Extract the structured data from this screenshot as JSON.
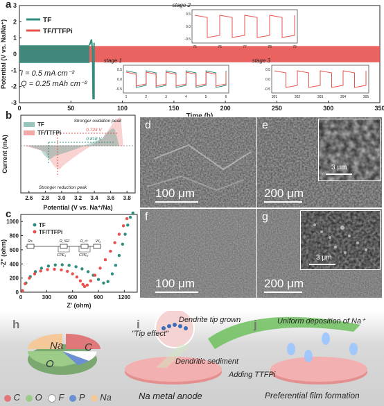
{
  "colors": {
    "tf": "#2f8c7e",
    "ttfpi": "#e8524f"
  },
  "panels": {
    "a": {
      "label": "a"
    },
    "b": {
      "label": "b"
    },
    "c": {
      "label": "c"
    },
    "d": {
      "label": "d",
      "scale": "100 μm"
    },
    "e": {
      "label": "e",
      "scale": "200 μm",
      "inset_scale": "3 μm"
    },
    "f": {
      "label": "f",
      "scale": "100 μm"
    },
    "g": {
      "label": "g",
      "scale": "200 μm",
      "inset_scale": "3 μm"
    },
    "h": {
      "label": "h"
    },
    "i": {
      "label": "i"
    },
    "j": {
      "label": "j"
    }
  },
  "chart_data": [
    {
      "id": "a",
      "type": "line",
      "xlabel": "Time (h)",
      "ylabel": "Potential (V vs. Na/Na⁺)",
      "xlim": [
        0,
        350
      ],
      "ylim": [
        -3,
        3
      ],
      "xticks": [
        0,
        50,
        100,
        150,
        200,
        250,
        300,
        350
      ],
      "yticks": [
        -3,
        -2,
        -1,
        0,
        1,
        2,
        3
      ],
      "legend": [
        "TF",
        "TF/TTFPi"
      ],
      "annotations": [
        "I = 0.5 mA cm⁻²",
        "Q = 0.25 mAh cm⁻²"
      ],
      "series": [
        {
          "name": "TF",
          "x": [
            0,
            68,
            70,
            71,
            72,
            73
          ],
          "y_band": [
            0.45,
            0.55,
            0.9,
            -2.7,
            -2.7,
            0.8
          ]
        },
        {
          "name": "TF/TTFPi",
          "x": [
            0,
            350
          ],
          "y_band": [
            0.5,
            0.5
          ]
        }
      ],
      "insets": [
        {
          "title": "stage 1",
          "xticks": [
            "1",
            "2",
            "3",
            "4",
            "5",
            "6"
          ],
          "yticks": [
            "0.5",
            "0.0",
            "-0.5"
          ]
        },
        {
          "title": "stage 2",
          "xticks": [
            "75",
            "76",
            "77",
            "78",
            "79"
          ],
          "yticks": [
            "0.5",
            "0.0",
            "-0.5"
          ]
        },
        {
          "title": "stage 3",
          "xticks": [
            "301",
            "302",
            "303",
            "304",
            "305"
          ],
          "yticks": [
            "0.5",
            "0.0",
            "-0.5"
          ]
        }
      ]
    },
    {
      "id": "b",
      "type": "line",
      "xlabel": "Potential (V vs. Na⁺/Na)",
      "ylabel": "Current (mA)",
      "xlim": [
        2.5,
        3.9
      ],
      "xticks": [
        2.6,
        2.8,
        3.0,
        3.2,
        3.4,
        3.6,
        3.8
      ],
      "legend": [
        "TF",
        "TF/TTFPi"
      ],
      "annotations": [
        "Stronger oxidation peak",
        "0.723 V",
        "0.818 V",
        "Stronger reduction peak"
      ],
      "series": [
        {
          "name": "TF",
          "oxidation_peak_V": 3.65,
          "reduction_peak_V": 2.84
        },
        {
          "name": "TF/TTFPi",
          "oxidation_peak_V": 3.68,
          "reduction_peak_V": 2.95
        }
      ]
    },
    {
      "id": "c",
      "type": "scatter",
      "xlabel": "Z' (ohm)",
      "ylabel": "-Z'' (ohm)",
      "xlim": [
        0,
        1350
      ],
      "ylim": [
        0,
        1100
      ],
      "xticks": [
        0,
        300,
        600,
        900,
        1200
      ],
      "yticks": [
        0,
        200,
        400,
        600,
        800,
        1000
      ],
      "legend": [
        "TF",
        "TF/TTFPi"
      ],
      "circuit": [
        "Rs",
        "R_SEI",
        "CPE₁",
        "R_ct",
        "CPE₂",
        "W₁"
      ],
      "series": [
        {
          "name": "TF",
          "x": [
            20,
            60,
            110,
            170,
            240,
            320,
            400,
            480,
            560,
            640,
            710,
            780,
            840,
            900,
            960,
            1010,
            1060,
            1100,
            1140,
            1180,
            1210,
            1240,
            1270,
            1300
          ],
          "y": [
            20,
            130,
            220,
            290,
            340,
            370,
            385,
            388,
            380,
            360,
            330,
            290,
            240,
            180,
            130,
            150,
            260,
            380,
            520,
            680,
            820,
            950,
            1060,
            1120
          ]
        },
        {
          "name": "TF/TTFPi",
          "x": [
            20,
            50,
            100,
            160,
            230,
            310,
            390,
            470,
            540,
            600,
            650,
            690,
            720,
            740,
            770,
            810,
            860,
            920,
            980,
            1040,
            1090,
            1140,
            1190,
            1230
          ],
          "y": [
            20,
            120,
            200,
            260,
            300,
            320,
            325,
            315,
            295,
            260,
            215,
            160,
            110,
            80,
            100,
            160,
            240,
            340,
            460,
            580,
            700,
            820,
            940,
            1040
          ]
        }
      ]
    }
  ],
  "b_text": {
    "tf_label": "TF",
    "ttfpi_label": "TF/TTFPi",
    "ox": "Stronger oxidation peak",
    "v1": "0.723 V",
    "v2": "0.818 V",
    "red": "Stronger reduction peak"
  },
  "a_text": {
    "current": "I = 0.5 mA cm⁻²",
    "capacity": "Q = 0.25 mAh cm⁻²"
  },
  "c_circuit": {
    "rs": "Rs",
    "rsei": "R_SEI",
    "rct": "R_ct",
    "w": "W₁",
    "cpe1": "CPE₁",
    "cpe2": "CPE₂"
  },
  "pie": {
    "slices": [
      {
        "label": "C",
        "color": "#e0787a"
      },
      {
        "label": "O",
        "color": "#9ccc88"
      },
      {
        "label": "Na",
        "color": "#f4c898"
      },
      {
        "label": "F",
        "color": "#ffffff"
      },
      {
        "label": "P",
        "color": "#6c8fd4"
      }
    ],
    "legend": [
      {
        "sym": "C",
        "color": "#e0787a"
      },
      {
        "sym": "O",
        "color": "#9ccc88"
      },
      {
        "sym": "F",
        "color": "#ffffff"
      },
      {
        "sym": "P",
        "color": "#6c8fd4"
      },
      {
        "sym": "Na",
        "color": "#f4c898"
      }
    ]
  },
  "schematic": {
    "dendrite_tip": "Dendrite tip grown",
    "tip_effect": "\"Tip effect\"",
    "dendritic_sediment": "Dendritic sediment",
    "na_anode": "Na metal anode",
    "adding": "Adding TTFPi",
    "uniform": "Uniform deposition of Na⁺",
    "preferential": "Preferential film formation"
  }
}
